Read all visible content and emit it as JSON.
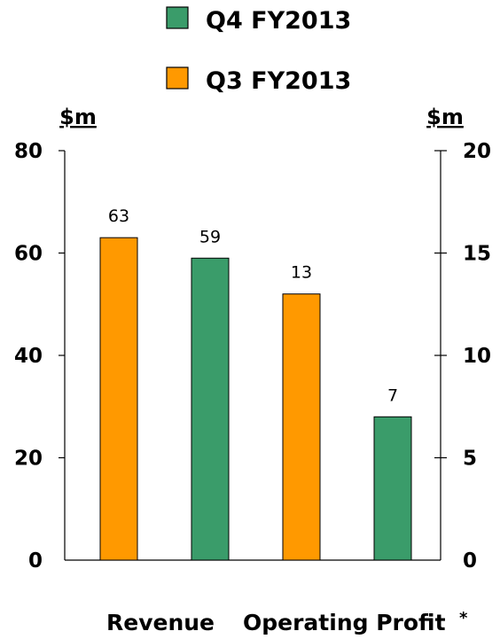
{
  "chart_data": {
    "type": "bar",
    "legend": [
      "Q4 FY2013",
      "Q3 FY2013"
    ],
    "legend_placement": "top-center",
    "colors": {
      "Q4 FY2013": "#3a9c6a",
      "Q3 FY2013": "#ff9900"
    },
    "left_axis": {
      "unit": "$m",
      "ylim": [
        0,
        80
      ],
      "ticks": [
        "0",
        "20",
        "40",
        "60",
        "80"
      ]
    },
    "right_axis": {
      "unit": "$m",
      "ylim": [
        0,
        20
      ],
      "ticks": [
        "0",
        "5",
        "10",
        "15",
        "20"
      ]
    },
    "categories": [
      {
        "label": "Revenue",
        "footnote": "",
        "axis": "left"
      },
      {
        "label": "Operating Profit",
        "footnote": "*",
        "axis": "right"
      }
    ],
    "bars": [
      {
        "category": "Revenue",
        "series": "Q3 FY2013",
        "value": 63,
        "label": "63"
      },
      {
        "category": "Revenue",
        "series": "Q4 FY2013",
        "value": 59,
        "label": "59"
      },
      {
        "category": "Operating Profit",
        "series": "Q3 FY2013",
        "value": 13,
        "label": "13"
      },
      {
        "category": "Operating Profit",
        "series": "Q4 FY2013",
        "value": 7,
        "label": "7"
      }
    ],
    "grid": false
  }
}
